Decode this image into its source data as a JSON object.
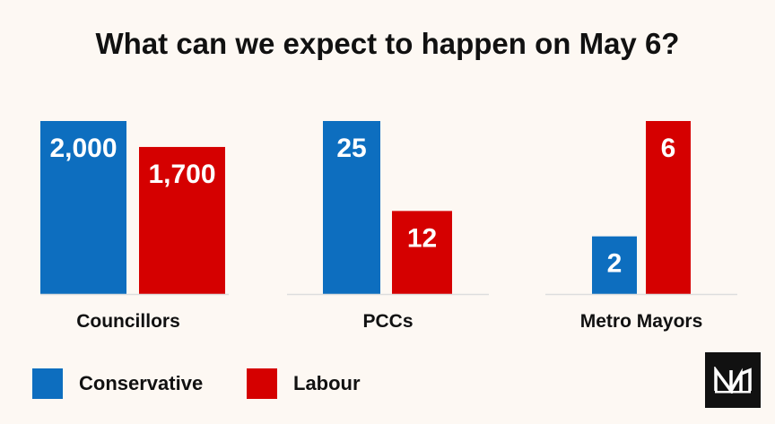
{
  "title": "What can we expect to happen on May 6?",
  "colors": {
    "conservative": "#0d6ebf",
    "labour": "#d50000",
    "axis": "#dddddd"
  },
  "chart_data": {
    "type": "bar",
    "title": "What can we expect to happen on May 6?",
    "panels": [
      {
        "category": "Councillors",
        "series": [
          {
            "name": "Conservative",
            "value": 2000,
            "label": "2,000"
          },
          {
            "name": "Labour",
            "value": 1700,
            "label": "1,700"
          }
        ]
      },
      {
        "category": "PCCs",
        "series": [
          {
            "name": "Conservative",
            "value": 25,
            "label": "25"
          },
          {
            "name": "Labour",
            "value": 12,
            "label": "12"
          }
        ]
      },
      {
        "category": "Metro Mayors",
        "series": [
          {
            "name": "Conservative",
            "value": 2,
            "label": "2"
          },
          {
            "name": "Labour",
            "value": 6,
            "label": "6"
          }
        ]
      }
    ],
    "legend": [
      "Conservative",
      "Labour"
    ],
    "legend_position": "bottom-left",
    "grid": false
  },
  "legend": {
    "conservative": "Conservative",
    "labour": "Labour"
  },
  "logo": {
    "icon": "nm-logo-icon"
  }
}
